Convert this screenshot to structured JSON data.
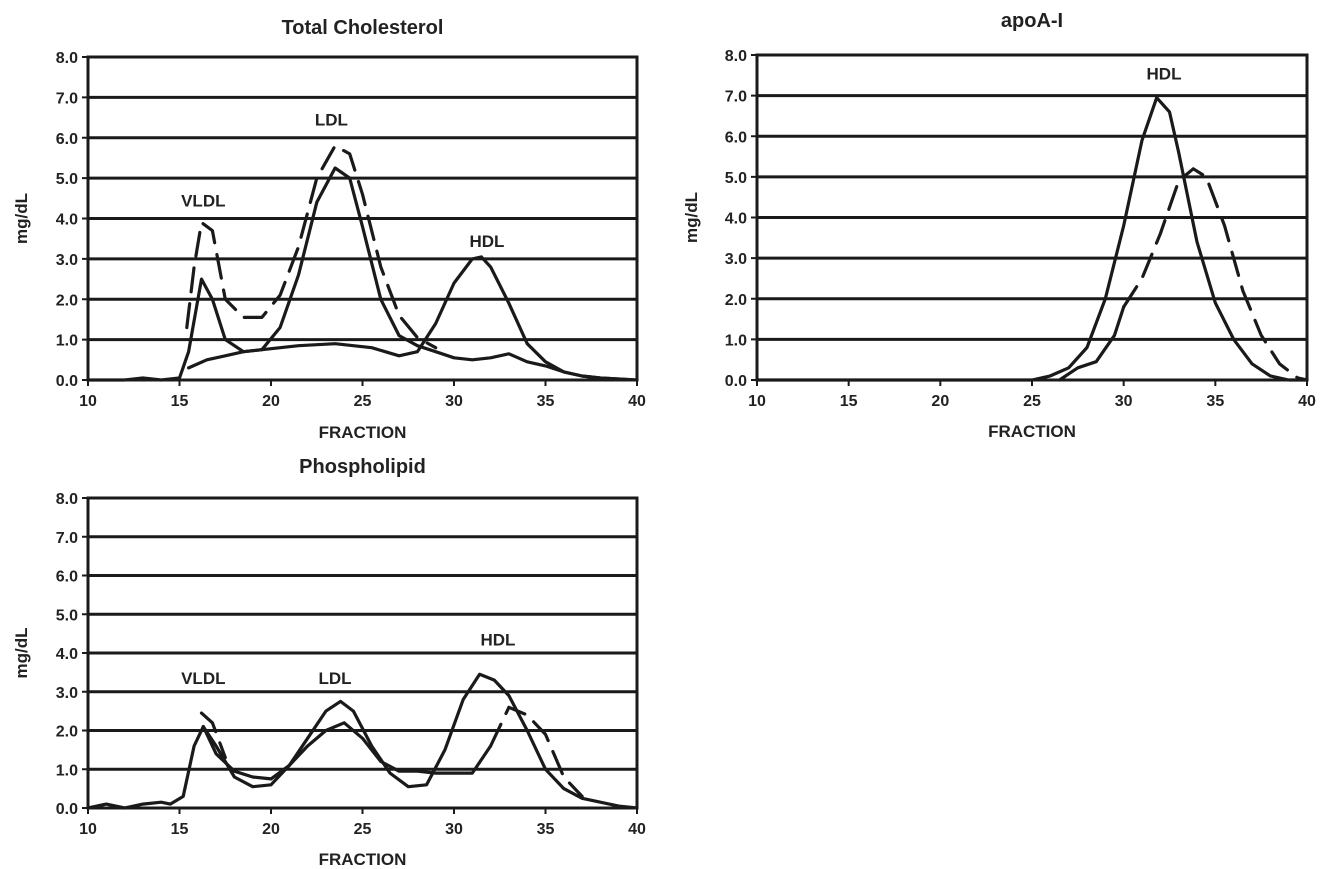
{
  "chart_data": [
    {
      "type": "line",
      "title": "Total Cholesterol",
      "xlabel": "FRACTION",
      "ylabel": "mg/dL",
      "xlim": [
        10,
        40
      ],
      "ylim": [
        0,
        8
      ],
      "xticks": [
        10,
        15,
        20,
        25,
        30,
        35,
        40
      ],
      "yticks": [
        0,
        1,
        2,
        3,
        4,
        5,
        6,
        7,
        8
      ],
      "ytick_labels": [
        "0.0",
        "1.0",
        "2.0",
        "3.0",
        "4.0",
        "5.0",
        "6.0",
        "7.0",
        "8.0"
      ],
      "grid": "horizontal",
      "annotations": [
        {
          "text": "VLDL",
          "x": 16.3,
          "y": 4.3
        },
        {
          "text": "LDL",
          "x": 23.3,
          "y": 6.3
        },
        {
          "text": "HDL",
          "x": 31.8,
          "y": 3.3
        }
      ],
      "series": [
        {
          "style": "solid",
          "points": [
            [
              10,
              0.0
            ],
            [
              12,
              0.0
            ],
            [
              13,
              0.05
            ],
            [
              14,
              0.0
            ],
            [
              15,
              0.05
            ],
            [
              15.5,
              0.7
            ],
            [
              16.2,
              2.5
            ],
            [
              16.8,
              2.0
            ],
            [
              17.5,
              1.0
            ],
            [
              18.5,
              0.7
            ],
            [
              19.5,
              0.75
            ],
            [
              20.5,
              1.3
            ],
            [
              21.5,
              2.6
            ],
            [
              22.5,
              4.4
            ],
            [
              23.5,
              5.25
            ],
            [
              24.3,
              5.0
            ],
            [
              25,
              3.8
            ],
            [
              26,
              2.0
            ],
            [
              27,
              1.1
            ],
            [
              28,
              0.85
            ],
            [
              29,
              0.7
            ],
            [
              30,
              0.55
            ],
            [
              31,
              0.5
            ],
            [
              32,
              0.55
            ],
            [
              33,
              0.65
            ],
            [
              34,
              0.45
            ],
            [
              35,
              0.35
            ],
            [
              36,
              0.2
            ],
            [
              37,
              0.1
            ],
            [
              38,
              0.05
            ],
            [
              40,
              0.0
            ]
          ]
        },
        {
          "style": "solid",
          "points": [
            [
              15.5,
              0.3
            ],
            [
              16.5,
              0.5
            ],
            [
              17.5,
              0.6
            ],
            [
              18.5,
              0.7
            ],
            [
              19.5,
              0.75
            ],
            [
              21.5,
              0.85
            ],
            [
              23.5,
              0.9
            ],
            [
              25.5,
              0.8
            ],
            [
              27,
              0.6
            ],
            [
              28,
              0.7
            ],
            [
              29,
              1.4
            ],
            [
              30,
              2.4
            ],
            [
              31,
              3.0
            ],
            [
              31.5,
              3.05
            ],
            [
              32,
              2.8
            ],
            [
              33,
              1.9
            ],
            [
              34,
              0.9
            ],
            [
              35,
              0.45
            ],
            [
              36,
              0.2
            ],
            [
              37,
              0.1
            ],
            [
              38,
              0.05
            ],
            [
              40,
              0.0
            ]
          ]
        },
        {
          "style": "dashed",
          "points": [
            [
              15.4,
              1.3
            ],
            [
              15.8,
              2.8
            ],
            [
              16.2,
              3.9
            ],
            [
              16.8,
              3.7
            ],
            [
              17.5,
              2.0
            ],
            [
              18.5,
              1.55
            ],
            [
              19.5,
              1.55
            ],
            [
              20.5,
              2.1
            ],
            [
              21.5,
              3.3
            ],
            [
              22.5,
              5.0
            ],
            [
              23.5,
              5.8
            ],
            [
              24.3,
              5.6
            ],
            [
              25,
              4.6
            ],
            [
              26,
              2.8
            ],
            [
              27,
              1.6
            ],
            [
              28,
              1.05
            ],
            [
              29,
              0.8
            ]
          ]
        }
      ]
    },
    {
      "type": "line",
      "title": "apoA-I",
      "xlabel": "FRACTION",
      "ylabel": "mg/dL",
      "xlim": [
        10,
        40
      ],
      "ylim": [
        0,
        8
      ],
      "xticks": [
        10,
        15,
        20,
        25,
        30,
        35,
        40
      ],
      "yticks": [
        0,
        1,
        2,
        3,
        4,
        5,
        6,
        7,
        8
      ],
      "ytick_labels": [
        "0.0",
        "1.0",
        "2.0",
        "3.0",
        "4.0",
        "5.0",
        "6.0",
        "7.0",
        "8.0"
      ],
      "grid": "horizontal",
      "annotations": [
        {
          "text": "HDL",
          "x": 32.2,
          "y": 7.4
        }
      ],
      "series": [
        {
          "style": "solid",
          "points": [
            [
              10,
              0.0
            ],
            [
              25,
              0.0
            ],
            [
              26,
              0.1
            ],
            [
              27,
              0.3
            ],
            [
              28,
              0.8
            ],
            [
              29,
              2.0
            ],
            [
              30,
              3.8
            ],
            [
              31,
              5.9
            ],
            [
              31.8,
              6.95
            ],
            [
              32.5,
              6.6
            ],
            [
              33,
              5.6
            ],
            [
              34,
              3.4
            ],
            [
              35,
              1.9
            ],
            [
              36,
              1.0
            ],
            [
              37,
              0.4
            ],
            [
              38,
              0.1
            ],
            [
              39,
              0.0
            ],
            [
              40,
              0.0
            ]
          ]
        },
        {
          "style": "solid",
          "points": [
            [
              26.5,
              0.0
            ],
            [
              27.5,
              0.3
            ],
            [
              28.5,
              0.45
            ],
            [
              29.5,
              1.1
            ],
            [
              30,
              1.8
            ]
          ]
        },
        {
          "style": "dashed",
          "points": [
            [
              30,
              1.8
            ],
            [
              31,
              2.5
            ],
            [
              32,
              3.6
            ],
            [
              33,
              4.9
            ],
            [
              33.8,
              5.2
            ],
            [
              34.5,
              5.0
            ],
            [
              35.5,
              3.8
            ],
            [
              36.5,
              2.2
            ],
            [
              37.5,
              1.1
            ],
            [
              38.5,
              0.4
            ],
            [
              39.5,
              0.05
            ],
            [
              40,
              0.0
            ]
          ]
        }
      ]
    },
    {
      "type": "line",
      "title": "Phospholipid",
      "xlabel": "FRACTION",
      "ylabel": "mg/dL",
      "xlim": [
        10,
        40
      ],
      "ylim": [
        0,
        8
      ],
      "xticks": [
        10,
        15,
        20,
        25,
        30,
        35,
        40
      ],
      "yticks": [
        0,
        1,
        2,
        3,
        4,
        5,
        6,
        7,
        8
      ],
      "ytick_labels": [
        "0.0",
        "1.0",
        "2.0",
        "3.0",
        "4.0",
        "5.0",
        "6.0",
        "7.0",
        "8.0"
      ],
      "grid": "horizontal",
      "annotations": [
        {
          "text": "VLDL",
          "x": 16.3,
          "y": 3.2
        },
        {
          "text": "LDL",
          "x": 23.5,
          "y": 3.2
        },
        {
          "text": "HDL",
          "x": 32.4,
          "y": 4.2
        }
      ],
      "series": [
        {
          "style": "solid",
          "points": [
            [
              10,
              0.0
            ],
            [
              11,
              0.1
            ],
            [
              12,
              0.0
            ],
            [
              13,
              0.1
            ],
            [
              14,
              0.15
            ],
            [
              14.5,
              0.1
            ],
            [
              15.2,
              0.3
            ],
            [
              15.8,
              1.6
            ],
            [
              16.3,
              2.1
            ],
            [
              17,
              1.6
            ],
            [
              18,
              0.8
            ],
            [
              19,
              0.55
            ],
            [
              20,
              0.6
            ],
            [
              21,
              1.1
            ],
            [
              22,
              1.8
            ],
            [
              23,
              2.5
            ],
            [
              23.8,
              2.75
            ],
            [
              24.5,
              2.5
            ],
            [
              25.5,
              1.6
            ],
            [
              26.5,
              0.9
            ],
            [
              27.5,
              0.55
            ],
            [
              28.5,
              0.6
            ],
            [
              29.5,
              1.5
            ],
            [
              30.5,
              2.8
            ],
            [
              31.4,
              3.45
            ],
            [
              32.2,
              3.3
            ],
            [
              33,
              2.9
            ],
            [
              34,
              2.0
            ],
            [
              35,
              1.0
            ],
            [
              36,
              0.5
            ],
            [
              37,
              0.25
            ],
            [
              38,
              0.15
            ],
            [
              39,
              0.05
            ],
            [
              40,
              0.0
            ]
          ]
        },
        {
          "style": "solid",
          "points": [
            [
              16.3,
              2.1
            ],
            [
              17,
              1.4
            ],
            [
              18,
              0.95
            ],
            [
              19,
              0.8
            ],
            [
              20,
              0.75
            ],
            [
              21,
              1.1
            ],
            [
              22,
              1.6
            ],
            [
              23,
              2.0
            ],
            [
              24,
              2.2
            ],
            [
              25,
              1.8
            ],
            [
              26,
              1.2
            ],
            [
              27,
              0.95
            ],
            [
              28,
              0.95
            ],
            [
              29,
              0.9
            ],
            [
              30,
              0.9
            ],
            [
              31,
              0.9
            ],
            [
              32,
              1.6
            ]
          ]
        },
        {
          "style": "dashed",
          "points": [
            [
              16.2,
              2.45
            ],
            [
              16.8,
              2.2
            ],
            [
              17.5,
              1.3
            ]
          ]
        },
        {
          "style": "dashed",
          "points": [
            [
              32,
              1.6
            ],
            [
              33,
              2.6
            ],
            [
              34,
              2.4
            ],
            [
              35,
              1.9
            ],
            [
              36,
              0.8
            ],
            [
              37,
              0.3
            ]
          ]
        }
      ]
    }
  ]
}
